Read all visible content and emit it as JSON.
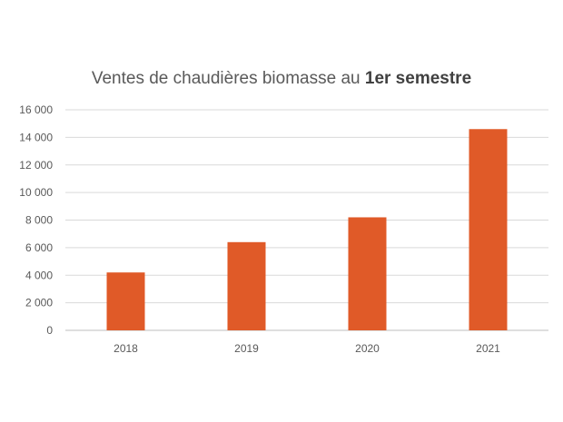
{
  "chart_data": {
    "type": "bar",
    "title_main": "Ventes de chaudières biomasse au",
    "title_bold": "1er semestre",
    "categories": [
      "2018",
      "2019",
      "2020",
      "2021"
    ],
    "values": [
      4200,
      6400,
      8200,
      14600
    ],
    "ylim": [
      0,
      16000
    ],
    "yticks": [
      0,
      2000,
      4000,
      6000,
      8000,
      10000,
      12000,
      14000,
      16000
    ],
    "ytick_labels": [
      "0",
      "2 000",
      "4 000",
      "6 000",
      "8 000",
      "10 000",
      "12 000",
      "14 000",
      "16 000"
    ],
    "xlabel": "",
    "ylabel": "",
    "grid": true,
    "bar_color": "#e05a28"
  }
}
